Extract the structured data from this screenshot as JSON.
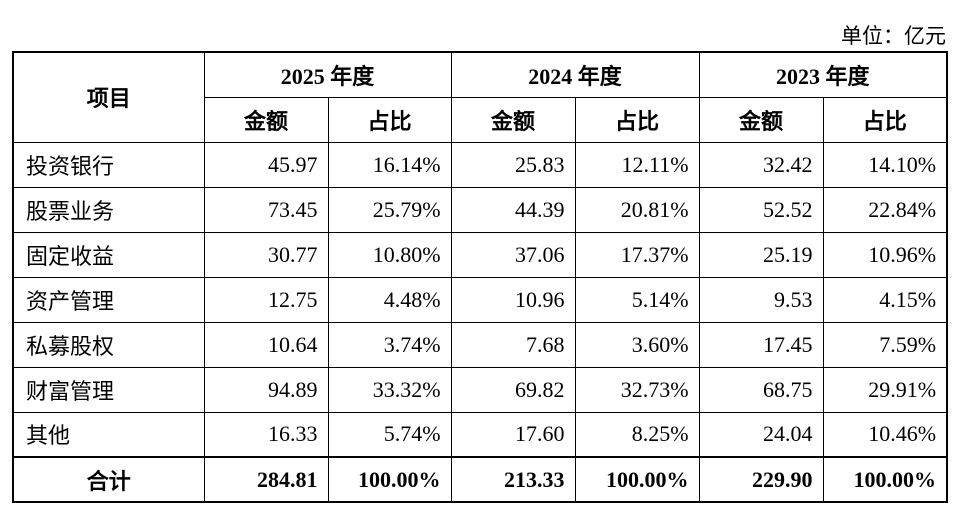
{
  "unit": "单位：亿元",
  "table": {
    "item_header": "项目",
    "years": [
      "2025 年度",
      "2024 年度",
      "2023 年度"
    ],
    "sub_headers": [
      "金额",
      "占比",
      "金额",
      "占比",
      "金额",
      "占比"
    ],
    "rows": [
      {
        "label": "投资银行",
        "cells": [
          "45.97",
          "16.14%",
          "25.83",
          "12.11%",
          "32.42",
          "14.10%"
        ]
      },
      {
        "label": "股票业务",
        "cells": [
          "73.45",
          "25.79%",
          "44.39",
          "20.81%",
          "52.52",
          "22.84%"
        ]
      },
      {
        "label": "固定收益",
        "cells": [
          "30.77",
          "10.80%",
          "37.06",
          "17.37%",
          "25.19",
          "10.96%"
        ]
      },
      {
        "label": "资产管理",
        "cells": [
          "12.75",
          "4.48%",
          "10.96",
          "5.14%",
          "9.53",
          "4.15%"
        ]
      },
      {
        "label": "私募股权",
        "cells": [
          "10.64",
          "3.74%",
          "7.68",
          "3.60%",
          "17.45",
          "7.59%"
        ]
      },
      {
        "label": "财富管理",
        "cells": [
          "94.89",
          "33.32%",
          "69.82",
          "32.73%",
          "68.75",
          "29.91%"
        ]
      },
      {
        "label": "其他",
        "cells": [
          "16.33",
          "5.74%",
          "17.60",
          "8.25%",
          "24.04",
          "10.46%"
        ]
      }
    ],
    "total": {
      "label": "合计",
      "cells": [
        "284.81",
        "100.00%",
        "213.33",
        "100.00%",
        "229.90",
        "100.00%"
      ]
    }
  }
}
